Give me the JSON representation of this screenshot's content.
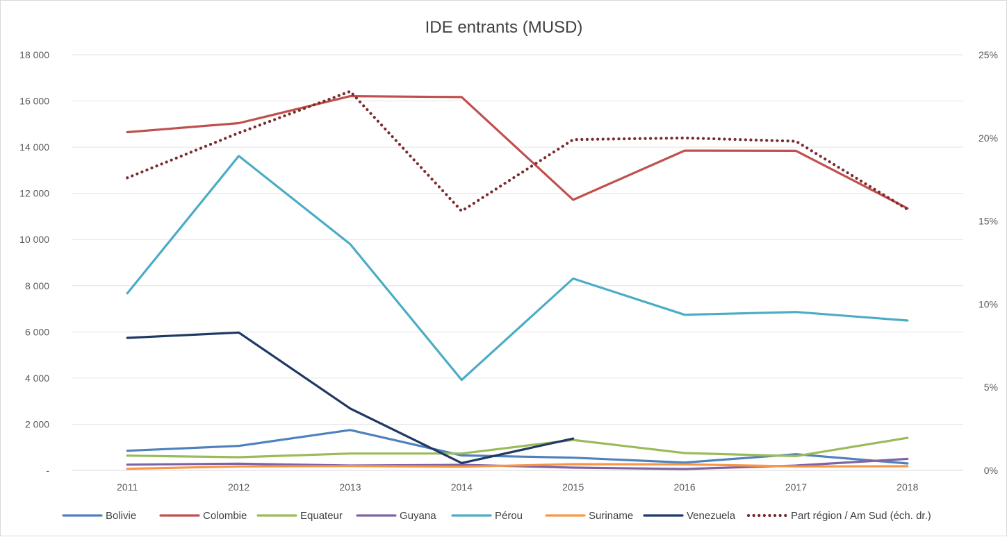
{
  "chart_data": {
    "type": "line",
    "title": "IDE entrants (MUSD)",
    "categories": [
      "2011",
      "2012",
      "2013",
      "2014",
      "2015",
      "2016",
      "2017",
      "2018"
    ],
    "y_axis_left": {
      "min": 0,
      "max": 18000,
      "step": 2000,
      "tick_labels": [
        "-",
        "2 000",
        "4 000",
        "6 000",
        "8 000",
        "10 000",
        "12 000",
        "14 000",
        "16 000",
        "18 000"
      ]
    },
    "y_axis_right": {
      "min": 0,
      "max": 0.25,
      "step": 0.05,
      "tick_labels": [
        "0%",
        "5%",
        "10%",
        "15%",
        "20%",
        "25%"
      ]
    },
    "grid": true,
    "legend_position": "bottom",
    "series": [
      {
        "name": "Bolivie",
        "color": "#4f81bd",
        "axis": "left",
        "style": "solid",
        "values": [
          850,
          1060,
          1750,
          650,
          550,
          340,
          700,
          300
        ]
      },
      {
        "name": "Colombie",
        "color": "#c0504d",
        "axis": "left",
        "style": "solid",
        "values": [
          14650,
          15040,
          16210,
          16170,
          11720,
          13850,
          13840,
          11350
        ]
      },
      {
        "name": "Equateur",
        "color": "#9bbb59",
        "axis": "left",
        "style": "solid",
        "values": [
          640,
          570,
          730,
          730,
          1320,
          750,
          620,
          1410
        ]
      },
      {
        "name": "Guyana",
        "color": "#8064a2",
        "axis": "left",
        "style": "solid",
        "values": [
          250,
          290,
          210,
          240,
          120,
          60,
          210,
          500
        ]
      },
      {
        "name": "Pérou",
        "color": "#4bacc6",
        "axis": "left",
        "style": "solid",
        "values": [
          7670,
          13620,
          9800,
          3920,
          8310,
          6740,
          6860,
          6490
        ]
      },
      {
        "name": "Suriname",
        "color": "#f79646",
        "axis": "left",
        "style": "solid",
        "values": [
          70,
          170,
          190,
          160,
          270,
          260,
          170,
          180
        ]
      },
      {
        "name": "Venezuela",
        "color": "#1f3864",
        "axis": "left",
        "style": "solid",
        "values": [
          5740,
          5970,
          2680,
          320,
          1380,
          null,
          null,
          null
        ]
      },
      {
        "name": "Part région / Am Sud (éch. dr.)",
        "color": "#7b2a2a",
        "axis": "right",
        "style": "dotted",
        "values": [
          0.176,
          0.203,
          0.228,
          0.156,
          0.199,
          0.2,
          0.198,
          0.157
        ]
      }
    ]
  }
}
